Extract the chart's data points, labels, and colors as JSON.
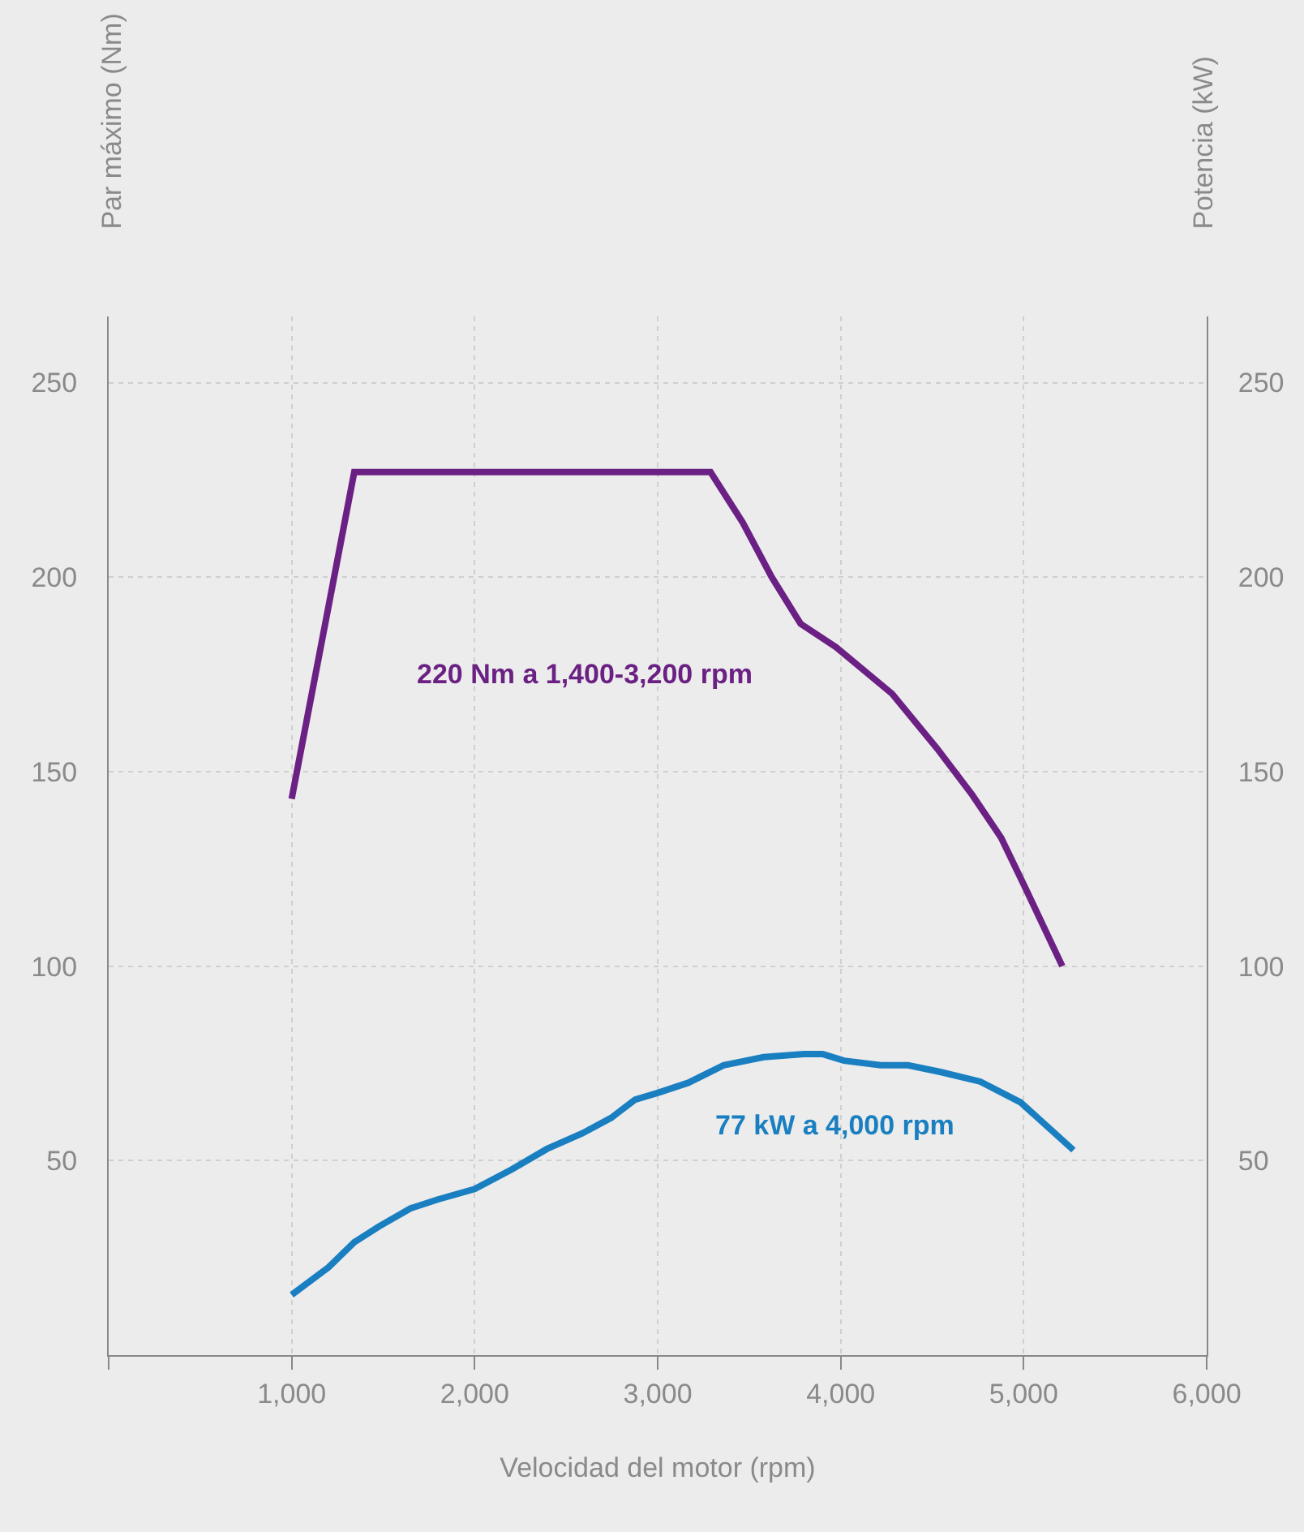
{
  "chart_data": {
    "type": "line",
    "xlabel": "Velocidad del motor (rpm)",
    "ylabel": "Par máximo (Nm)",
    "y2label": "Potencia (kW)",
    "x": [
      1000,
      1342,
      3289,
      3465,
      3623,
      3781,
      3974,
      4281,
      4526,
      4719,
      4877,
      5000,
      5211
    ],
    "series": [
      {
        "color": "#6b2184",
        "values": [
          143,
          227,
          227,
          214,
          200,
          188,
          182,
          170,
          156,
          144,
          133,
          121,
          100
        ]
      },
      {
        "color": "#1a7fc1",
        "axis": "y2",
        "x": [
          1000,
          1202,
          1342,
          1474,
          1649,
          1798,
          2000,
          2202,
          2395,
          2588,
          2746,
          2877,
          3000,
          3167,
          3360,
          3579,
          3798,
          3900,
          4018,
          4219,
          4368,
          4544,
          4763,
          4982,
          5272
        ],
        "values": [
          15.5,
          22.6,
          29,
          33,
          37.7,
          40,
          42.7,
          47.7,
          53,
          57,
          61,
          65.7,
          67.4,
          70,
          74.5,
          76.6,
          77.4,
          77.4,
          75.7,
          74.5,
          74.5,
          72.8,
          70.3,
          65,
          52.7
        ]
      }
    ],
    "xlim": [
      0,
      6000
    ],
    "xticks": [
      {
        "value": 0,
        "label": null
      },
      {
        "value": 1000,
        "label": "1,000"
      },
      {
        "value": 2000,
        "label": "2,000"
      },
      {
        "value": 3000,
        "label": "3,000"
      },
      {
        "value": 4000,
        "label": "4,000"
      },
      {
        "value": 5000,
        "label": "5,000"
      },
      {
        "value": 6000,
        "label": "6,000"
      }
    ],
    "ylim": [
      0,
      267
    ],
    "yticks": [
      50,
      100,
      150,
      200,
      250
    ],
    "y2lim": [
      0,
      267
    ],
    "y2ticks": [
      50,
      100,
      150,
      200,
      250
    ],
    "grid": true,
    "line_style": "solid",
    "marker": "none",
    "annotations": [
      "220 Nm a 1,400-3,200 rpm",
      "77 kW a 4,000 rpm"
    ]
  }
}
